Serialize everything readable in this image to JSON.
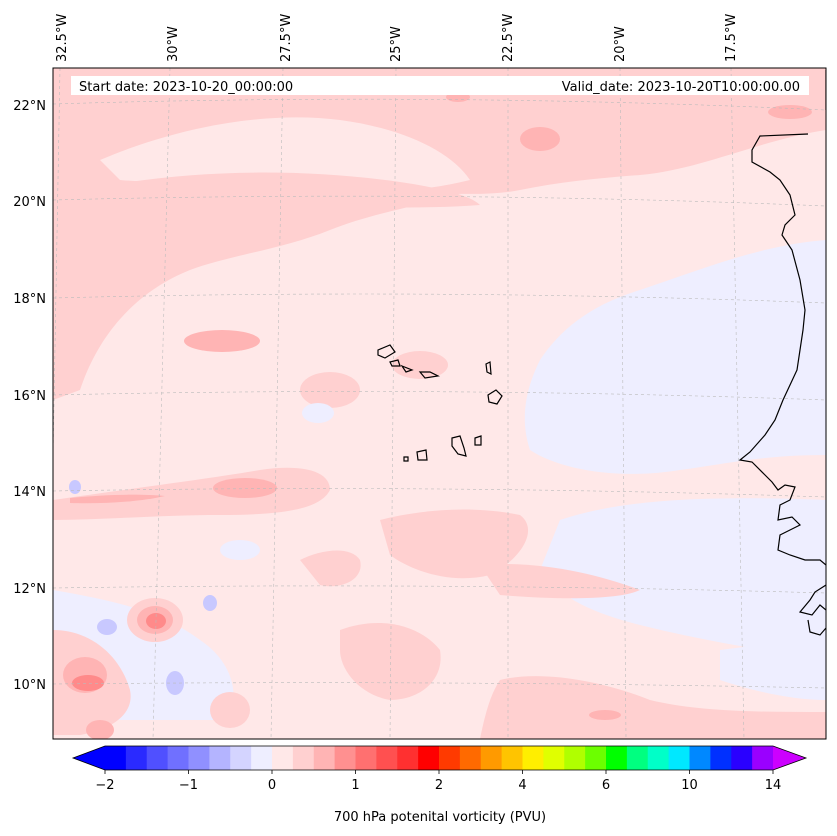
{
  "map": {
    "start_label": "Start date: 2023-10-20_00:00:00",
    "valid_label": "Valid_date: 2023-10-20T10:00:00.00",
    "lon_labels": [
      "32.5°W",
      "30°W",
      "27.5°W",
      "25°W",
      "22.5°W",
      "20°W",
      "17.5°W"
    ],
    "lat_labels": [
      "22°N",
      "20°N",
      "18°N",
      "16°N",
      "14°N",
      "12°N",
      "10°N"
    ]
  },
  "colorbar": {
    "label": "700 hPa potenital vorticity (PVU)",
    "tick_labels": [
      "−2",
      "−1",
      "0",
      "1",
      "2",
      "4",
      "6",
      "10",
      "14"
    ],
    "colors": [
      "#0000ff",
      "#2a2aff",
      "#5050ff",
      "#7070ff",
      "#9090ff",
      "#b4b4ff",
      "#d4d4ff",
      "#eeeeff",
      "#ffe8e8",
      "#ffd0d0",
      "#ffb4b4",
      "#ff9090",
      "#ff7070",
      "#ff5050",
      "#ff3030",
      "#ff0000",
      "#ff3a00",
      "#ff6a00",
      "#ff9a00",
      "#ffc400",
      "#ffee00",
      "#e0ff00",
      "#b0ff00",
      "#6cff00",
      "#00ff00",
      "#00ff80",
      "#00ffc8",
      "#00e8ff",
      "#0088ff",
      "#0030ff",
      "#2a00ff",
      "#9a00ff"
    ],
    "under_color": "#0000ff",
    "over_color": "#cc00ff"
  },
  "colors": {
    "background_field": "#ffe8e8",
    "positive_light": "#ffd0d0",
    "positive_mid": "#ffb4b4",
    "positive_strong": "#ff8a8a",
    "negative_light": "#eeeeff",
    "negative_mid": "#c8c8ff",
    "coast": "#000000"
  }
}
